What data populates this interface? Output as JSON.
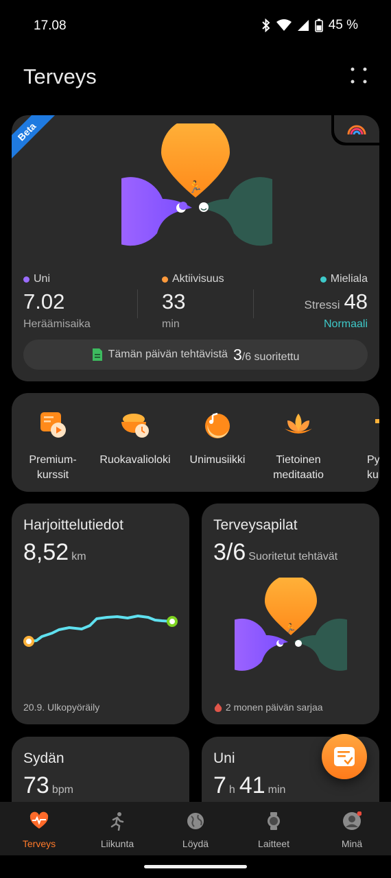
{
  "status": {
    "time": "17.08",
    "battery": "45 %"
  },
  "header": {
    "title": "Terveys"
  },
  "hero": {
    "beta": "Beta",
    "sleep": {
      "label": "Uni",
      "value": "7.02",
      "sub": "Heräämisaika",
      "color": "#9a6cff"
    },
    "activity": {
      "label": "Aktiivisuus",
      "value": "33",
      "sub": "min",
      "color": "#ff9a3c"
    },
    "mood": {
      "label": "Mieliala",
      "stress_label": "Stressi",
      "stress_value": "48",
      "status": "Normaali",
      "color": "#3ec9c9"
    },
    "tasks": {
      "prefix": "Tämän päivän tehtävistä",
      "done": "3",
      "suffix": "/6 suoritettu"
    }
  },
  "shortcuts": [
    {
      "label1": "Premium-",
      "label2": "kurssit"
    },
    {
      "label1": "Ruokavalioloki",
      "label2": ""
    },
    {
      "label1": "Unimusiikki",
      "label2": ""
    },
    {
      "label1": "Tietoinen",
      "label2": "meditaatio"
    },
    {
      "label1": "Py",
      "label2": "kunnos"
    }
  ],
  "workout": {
    "title": "Harjoittelutiedot",
    "value": "8,52",
    "unit": "km",
    "footer": "20.9.  Ulkopyöräily"
  },
  "healthy": {
    "title": "Terveysapilat",
    "value": "3/6",
    "unit": "Suoritetut tehtävät",
    "footer": "2 monen päivän sarjaa"
  },
  "heart": {
    "title": "Sydän",
    "value": "73",
    "unit": "bpm"
  },
  "sleep_tile": {
    "title": "Uni",
    "hours": "7",
    "h_unit": "h",
    "mins": "41",
    "m_unit": "min"
  },
  "tabs": [
    {
      "label": "Terveys",
      "icon": "heart-pulse-icon"
    },
    {
      "label": "Liikunta",
      "icon": "runner-icon"
    },
    {
      "label": "Löydä",
      "icon": "globe-icon"
    },
    {
      "label": "Laitteet",
      "icon": "watch-icon"
    },
    {
      "label": "Minä",
      "icon": "person-icon"
    }
  ]
}
